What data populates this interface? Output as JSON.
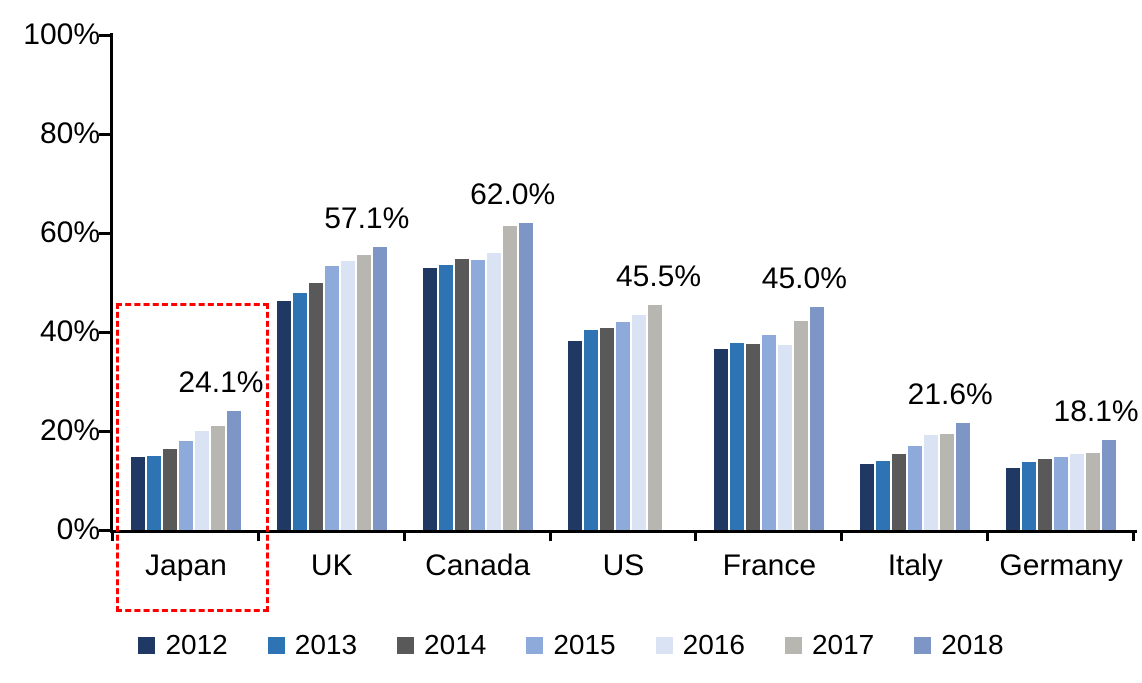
{
  "chart_data": {
    "type": "bar",
    "title": "",
    "xlabel": "",
    "ylabel": "",
    "categories": [
      "Japan",
      "UK",
      "Canada",
      "US",
      "France",
      "Italy",
      "Germany"
    ],
    "series": [
      {
        "name": "2012",
        "color": "#1F3864",
        "values": [
          14.8,
          46.2,
          53.0,
          38.2,
          36.6,
          13.3,
          12.5
        ]
      },
      {
        "name": "2013",
        "color": "#2E74B5",
        "values": [
          15.0,
          47.9,
          53.5,
          40.4,
          37.8,
          14.0,
          13.8
        ]
      },
      {
        "name": "2014",
        "color": "#595959",
        "values": [
          16.4,
          49.9,
          54.8,
          40.9,
          37.6,
          15.3,
          14.4
        ]
      },
      {
        "name": "2015",
        "color": "#8EAADB",
        "values": [
          18.0,
          53.4,
          54.5,
          42.1,
          39.3,
          16.9,
          14.8
        ]
      },
      {
        "name": "2016",
        "color": "#DAE3F3",
        "values": [
          20.1,
          54.3,
          56.0,
          43.4,
          37.3,
          19.2,
          15.3
        ]
      },
      {
        "name": "2017",
        "color": "#B8B6B1",
        "values": [
          21.0,
          55.6,
          61.5,
          45.5,
          42.3,
          19.4,
          15.6
        ]
      },
      {
        "name": "2018",
        "color": "#7E96C6",
        "values": [
          24.1,
          57.1,
          62.0,
          null,
          45.0,
          21.6,
          18.1
        ]
      }
    ],
    "data_labels": [
      "24.1%",
      "57.1%",
      "62.0%",
      "45.5%",
      "45.0%",
      "21.6%",
      "18.1%"
    ],
    "ylim": [
      0,
      100
    ],
    "yticks": [
      {
        "value": 0,
        "label": "0%"
      },
      {
        "value": 20,
        "label": "20%"
      },
      {
        "value": 40,
        "label": "40%"
      },
      {
        "value": 60,
        "label": "60%"
      },
      {
        "value": 80,
        "label": "80%"
      },
      {
        "value": 100,
        "label": "100%"
      }
    ],
    "grid": false,
    "legend": [
      "2012",
      "2013",
      "2014",
      "2015",
      "2016",
      "2017",
      "2018"
    ],
    "legend_position": "bottom",
    "highlight": {
      "category": "Japan",
      "style": "dashed-box",
      "color": "#FF0000"
    }
  }
}
